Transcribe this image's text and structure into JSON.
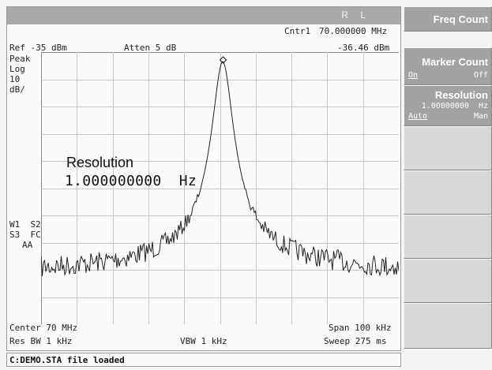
{
  "header": {
    "status_letters": "R L"
  },
  "readouts": {
    "ref": "Ref -35 dBm",
    "atten": "Atten 5 dB",
    "marker_label": "Cntr1",
    "marker_freq": "70.000000 MHz",
    "marker_ampl": "-36.46 dBm",
    "scale_lines": [
      "Peak",
      "Log",
      "10",
      "dB/"
    ],
    "trace_flags": [
      "W1  S2",
      "S3  FC",
      "AA"
    ],
    "resolution_label": "Resolution",
    "resolution_value": "1.000000000  Hz",
    "center": "Center 70 MHz",
    "span": "Span 100 kHz",
    "res_bw": "Res BW 1 kHz",
    "vbw": "VBW 1 kHz",
    "sweep": "Sweep 275 ms"
  },
  "status_line": "C:DEMO.STA file loaded",
  "softkeys": [
    {
      "title": "Freq Count"
    },
    {
      "title": "Marker Count",
      "left": "On",
      "right": "Off"
    },
    {
      "title": "Resolution",
      "value": "1.00000000  Hz",
      "left": "Auto",
      "right": "Man"
    }
  ],
  "colors": {
    "background": "#fafafa",
    "grid": "#c8c8c8",
    "trace": "#222222",
    "softkey_dark": "#a2a2a2",
    "softkey_light": "#d8d8d8"
  }
}
